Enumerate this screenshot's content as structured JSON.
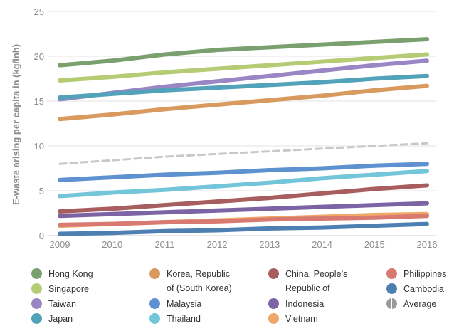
{
  "chart_data": {
    "type": "line",
    "ylabel": "E-waste arising per capita in (kg/inh)",
    "x": [
      2009,
      2010,
      2011,
      2012,
      2013,
      2014,
      2015,
      2016
    ],
    "xlim": [
      2009,
      2016
    ],
    "ylim": [
      0,
      25
    ],
    "yticks": [
      0,
      5,
      10,
      15,
      20,
      25
    ],
    "grid": true,
    "legend_position": "bottom",
    "series": [
      {
        "name": "Hong Kong",
        "color": "#7ba06f",
        "values": [
          19.0,
          19.5,
          20.2,
          20.7,
          21.0,
          21.3,
          21.6,
          21.9
        ]
      },
      {
        "name": "Singapore",
        "color": "#b5cc74",
        "values": [
          17.3,
          17.7,
          18.2,
          18.6,
          19.0,
          19.4,
          19.8,
          20.2
        ]
      },
      {
        "name": "Taiwan",
        "color": "#9a86c4",
        "values": [
          15.2,
          15.9,
          16.6,
          17.2,
          17.8,
          18.4,
          19.0,
          19.5
        ]
      },
      {
        "name": "Japan",
        "color": "#52a2b9",
        "values": [
          15.4,
          15.8,
          16.2,
          16.5,
          16.8,
          17.1,
          17.5,
          17.8
        ]
      },
      {
        "name": "Korea, Republic\nof (South Korea)",
        "color": "#d99a5f",
        "values": [
          13.0,
          13.5,
          14.1,
          14.6,
          15.1,
          15.6,
          16.2,
          16.7
        ]
      },
      {
        "name": "Malaysia",
        "color": "#5e91cf",
        "values": [
          6.2,
          6.5,
          6.8,
          7.0,
          7.3,
          7.5,
          7.8,
          8.0
        ]
      },
      {
        "name": "Thailand",
        "color": "#73c6da",
        "values": [
          4.4,
          4.8,
          5.1,
          5.5,
          5.9,
          6.4,
          6.8,
          7.2
        ]
      },
      {
        "name": "China, People’s\nRepublic of",
        "color": "#a85e5e",
        "values": [
          2.7,
          3.0,
          3.4,
          3.8,
          4.2,
          4.7,
          5.2,
          5.6
        ]
      },
      {
        "name": "Indonesia",
        "color": "#7c64a4",
        "values": [
          2.2,
          2.4,
          2.6,
          2.8,
          3.0,
          3.2,
          3.4,
          3.6
        ]
      },
      {
        "name": "Vietnam",
        "color": "#f0a868",
        "values": [
          1.1,
          1.3,
          1.5,
          1.7,
          1.9,
          2.1,
          2.3,
          2.4
        ]
      },
      {
        "name": "Philippines",
        "color": "#d97a72",
        "values": [
          1.2,
          1.3,
          1.5,
          1.6,
          1.8,
          1.9,
          2.0,
          2.2
        ]
      },
      {
        "name": "Cambodia",
        "color": "#4e7fb3",
        "values": [
          0.2,
          0.3,
          0.5,
          0.6,
          0.8,
          0.9,
          1.1,
          1.3
        ]
      },
      {
        "name": "Average",
        "color": "#c8c8c8",
        "dashed": true,
        "values": [
          8.0,
          8.4,
          8.8,
          9.1,
          9.4,
          9.7,
          10.0,
          10.3
        ]
      }
    ]
  },
  "legend": [
    {
      "label": "Hong Kong",
      "color": "#7ba06f"
    },
    {
      "label": "Singapore",
      "color": "#b5cc74"
    },
    {
      "label": "Taiwan",
      "color": "#9a86c4"
    },
    {
      "label": "Japan",
      "color": "#52a2b9"
    },
    {
      "label": "Korea, Republic\nof (South Korea)",
      "color": "#d99a5f"
    },
    {
      "label": "Malaysia",
      "color": "#5e91cf"
    },
    {
      "label": "Thailand",
      "color": "#73c6da"
    },
    {
      "label": "China, People’s\nRepublic of",
      "color": "#a85e5e"
    },
    {
      "label": "Indonesia",
      "color": "#7c64a4"
    },
    {
      "label": "Vietnam",
      "color": "#f0a868"
    },
    {
      "label": "Philippines",
      "color": "#d97a72"
    },
    {
      "label": "Cambodia",
      "color": "#4e7fb3"
    },
    {
      "label": "Average",
      "color": "#9a9a9a",
      "icon": "half-circle-icon"
    }
  ]
}
